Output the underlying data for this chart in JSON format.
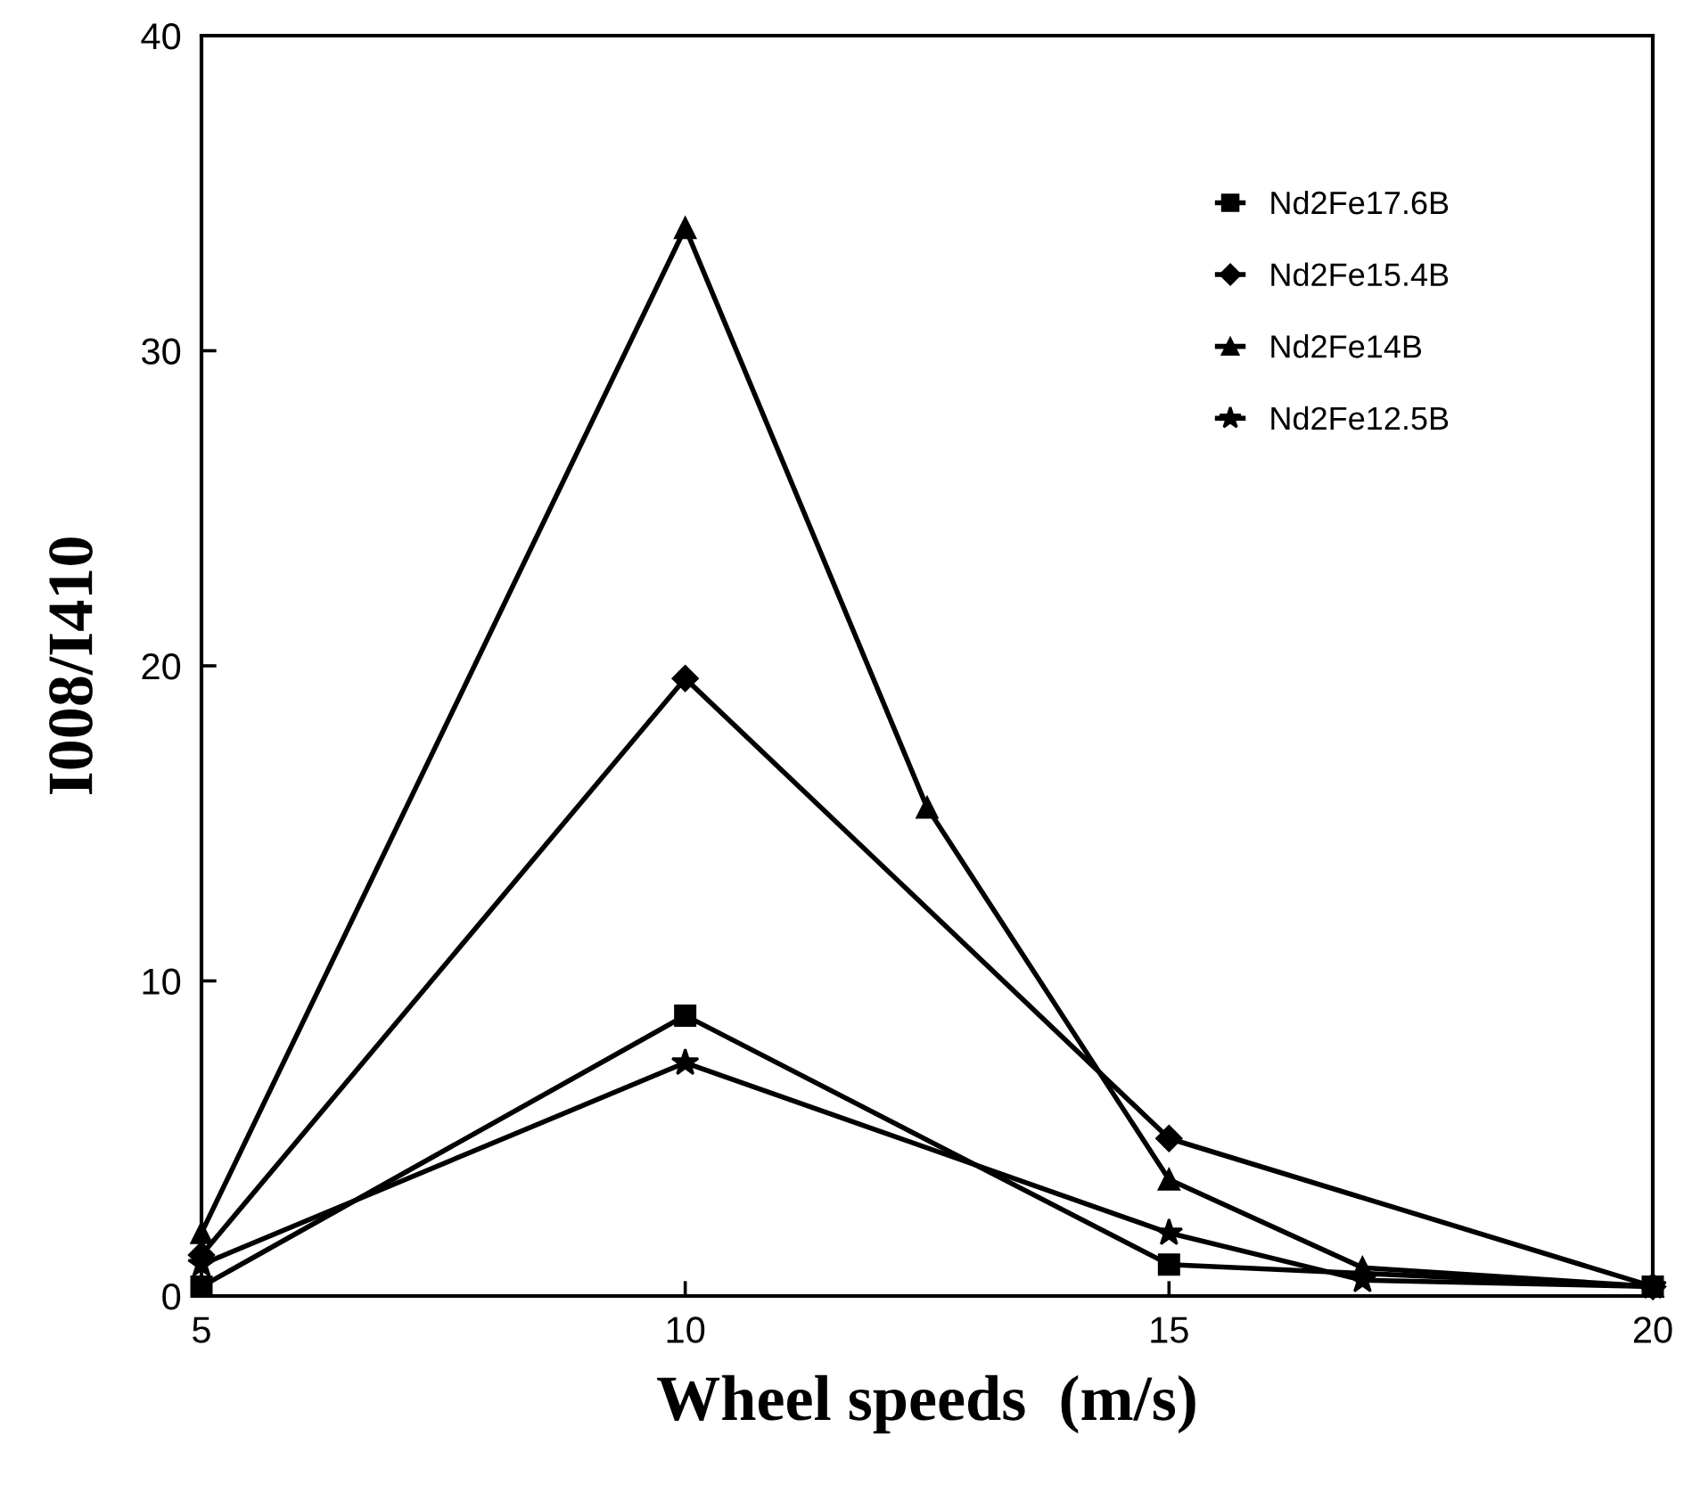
{
  "chart_data": {
    "type": "line",
    "xlabel": "Wheel speeds  (m/s)",
    "ylabel": "I008/I410",
    "xlim": [
      5,
      20
    ],
    "xticks": [
      5,
      10,
      15,
      20
    ],
    "ylim": [
      0,
      40
    ],
    "yticks": [
      0,
      10,
      20,
      30,
      40
    ],
    "grid": false,
    "legend": "top right",
    "series": [
      {
        "name": "Nd2Fe17.6B",
        "color": "#000000",
        "marker": "square",
        "x": [
          5,
          10,
          15,
          20
        ],
        "values": [
          0.3,
          8.9,
          1.0,
          0.3
        ]
      },
      {
        "name": "Nd2Fe15.4B",
        "color": "#000000",
        "marker": "diamond",
        "x": [
          5,
          10,
          15,
          20
        ],
        "values": [
          1.3,
          19.6,
          5.0,
          0.3
        ]
      },
      {
        "name": "Nd2Fe14B",
        "color": "#000000",
        "marker": "triangle",
        "x": [
          5,
          10,
          12.5,
          15,
          17,
          20
        ],
        "values": [
          2.0,
          33.9,
          15.5,
          3.7,
          0.9,
          0.3
        ]
      },
      {
        "name": "Nd2Fe12.5B",
        "color": "#000000",
        "marker": "star",
        "x": [
          5,
          10,
          15,
          17,
          20
        ],
        "values": [
          1.0,
          7.4,
          2.0,
          0.5,
          0.3
        ]
      }
    ]
  }
}
